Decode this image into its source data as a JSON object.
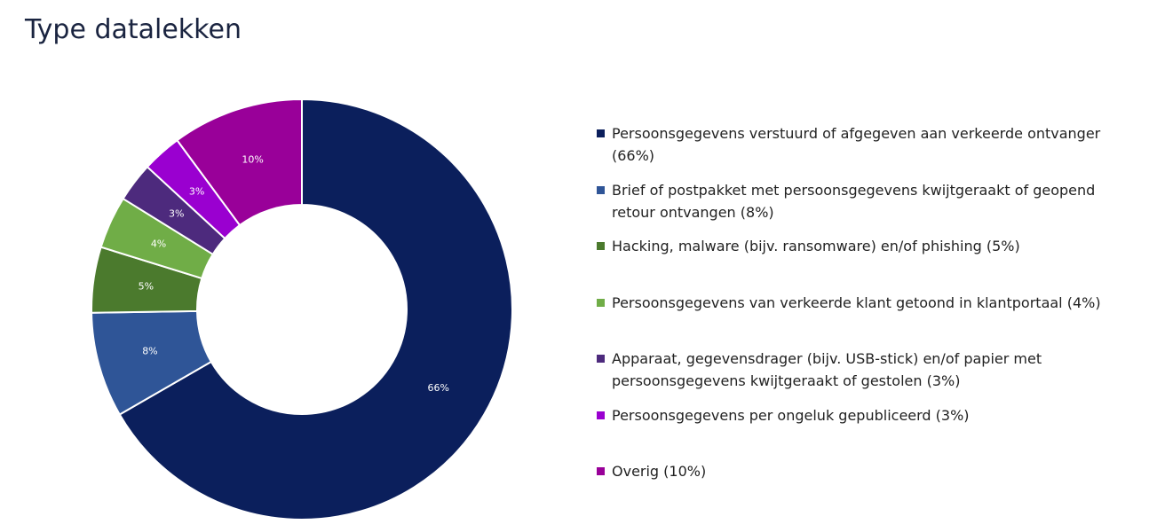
{
  "chart_data": {
    "type": "donut",
    "title": "Type datalekken",
    "categories": [
      "Persoonsgegevens verstuurd of afgegeven aan verkeerde ontvanger (66%)",
      "Brief of postpakket met persoonsgegevens kwijtgeraakt of geopend retour ontvangen (8%)",
      "Hacking, malware (bijv. ransomware) en/of phishing (5%)",
      "Persoonsgegevens van verkeerde klant getoond in klantportaal (4%)",
      "Apparaat, gegevensdrager (bijv. USB-stick) en/of papier met persoonsgegevens kwijtgeraakt of gestolen (3%)",
      "Persoonsgegevens per ongeluk gepubliceerd (3%)",
      "Overig (10%)"
    ],
    "values": [
      66,
      8,
      5,
      4,
      3,
      3,
      10
    ],
    "value_labels": [
      "66%",
      "8%",
      "5%",
      "4%",
      "3%",
      "3%",
      "10%"
    ],
    "colors": [
      "#0b1f5c",
      "#2f5597",
      "#4b7a2d",
      "#70ad47",
      "#4d2a7d",
      "#9a00d0",
      "#990099"
    ],
    "legend": "right"
  }
}
